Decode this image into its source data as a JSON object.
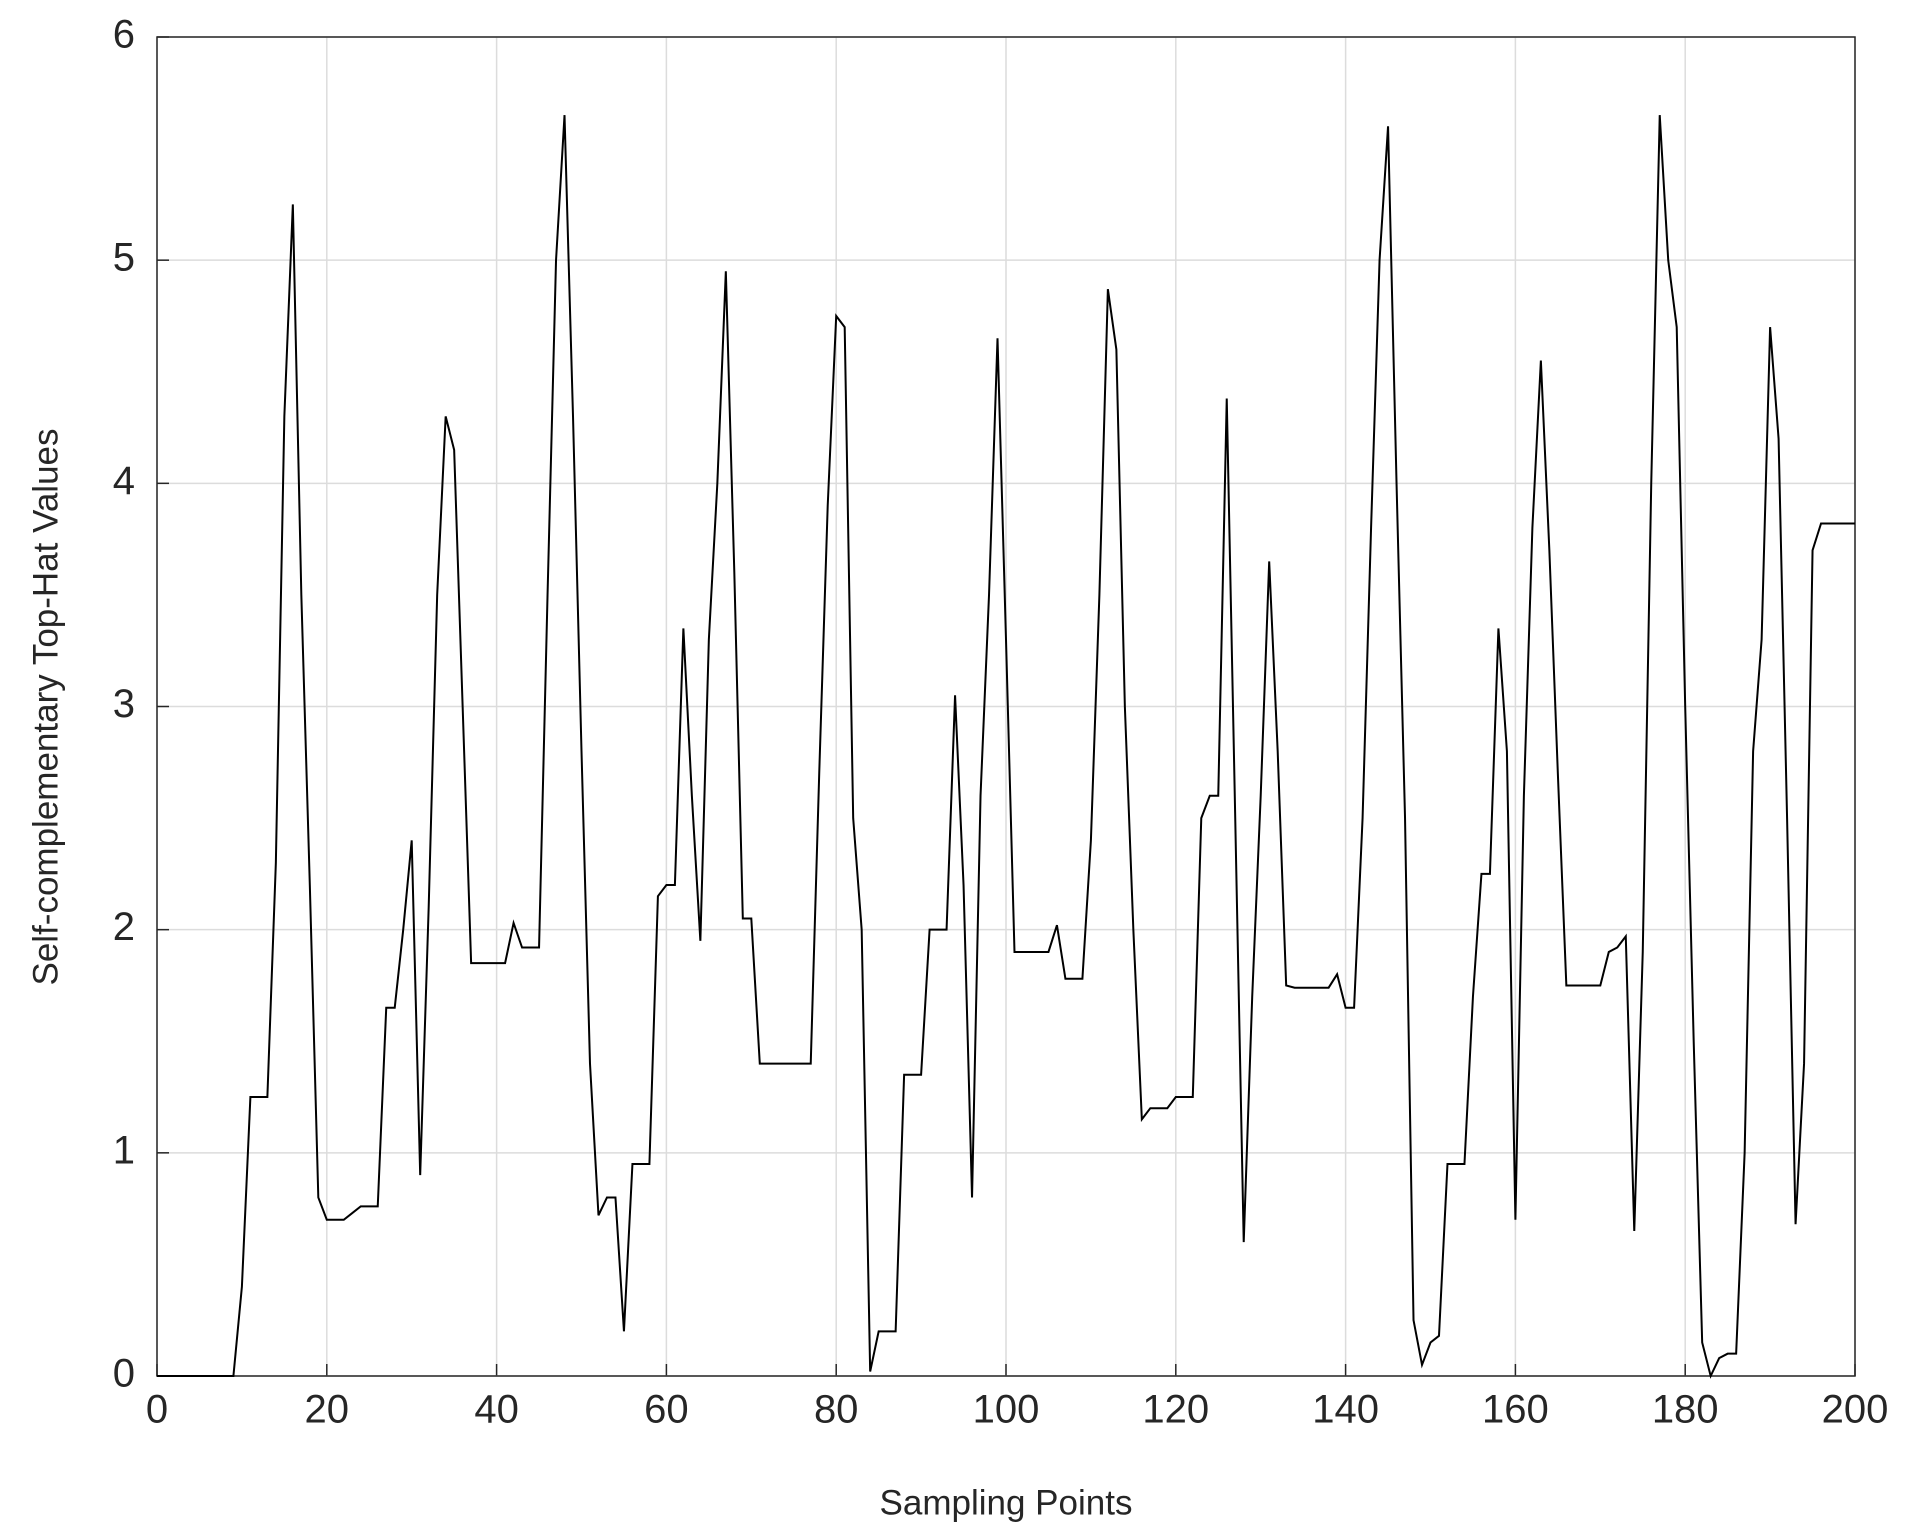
{
  "chart_data": {
    "type": "line",
    "xlabel": "Sampling Points",
    "ylabel": "Self-complementary Top-Hat Values",
    "x": [
      0,
      1,
      2,
      3,
      4,
      5,
      6,
      7,
      8,
      9,
      10,
      11,
      12,
      13,
      14,
      15,
      16,
      17,
      18,
      19,
      20,
      21,
      22,
      23,
      24,
      25,
      26,
      27,
      28,
      29,
      30,
      31,
      32,
      33,
      34,
      35,
      36,
      37,
      38,
      39,
      40,
      41,
      42,
      43,
      44,
      45,
      46,
      47,
      48,
      49,
      50,
      51,
      52,
      53,
      54,
      55,
      56,
      57,
      58,
      59,
      60,
      61,
      62,
      63,
      64,
      65,
      66,
      67,
      68,
      69,
      70,
      71,
      72,
      73,
      74,
      75,
      76,
      77,
      78,
      79,
      80,
      81,
      82,
      83,
      84,
      85,
      86,
      87,
      88,
      89,
      90,
      91,
      92,
      93,
      94,
      95,
      96,
      97,
      98,
      99,
      100,
      101,
      102,
      103,
      104,
      105,
      106,
      107,
      108,
      109,
      110,
      111,
      112,
      113,
      114,
      115,
      116,
      117,
      118,
      119,
      120,
      121,
      122,
      123,
      124,
      125,
      126,
      127,
      128,
      129,
      130,
      131,
      132,
      133,
      134,
      135,
      136,
      137,
      138,
      139,
      140,
      141,
      142,
      143,
      144,
      145,
      146,
      147,
      148,
      149,
      150,
      151,
      152,
      153,
      154,
      155,
      156,
      157,
      158,
      159,
      160,
      161,
      162,
      163,
      164,
      165,
      166,
      167,
      168,
      169,
      170,
      171,
      172,
      173,
      174,
      175,
      176,
      177,
      178,
      179,
      180,
      181,
      182,
      183,
      184,
      185,
      186,
      187,
      188,
      189,
      190,
      191,
      192,
      193,
      194,
      195,
      196,
      197,
      198,
      199,
      200
    ],
    "series": [
      {
        "color": "#000000",
        "values": [
          0,
          0,
          0,
          0,
          0,
          0,
          0,
          0,
          0,
          0,
          0.4,
          1.25,
          1.25,
          1.25,
          2.3,
          4.3,
          5.25,
          3.5,
          2.2,
          0.8,
          0.7,
          0.7,
          0.7,
          0.73,
          0.76,
          0.76,
          0.76,
          1.65,
          1.65,
          2.0,
          2.4,
          0.9,
          2.1,
          3.5,
          4.3,
          4.15,
          3.0,
          1.85,
          1.85,
          1.85,
          1.85,
          1.85,
          2.03,
          1.92,
          1.92,
          1.92,
          3.5,
          5.0,
          5.65,
          4.3,
          2.8,
          1.4,
          0.72,
          0.8,
          0.8,
          0.2,
          0.95,
          0.95,
          0.95,
          2.15,
          2.2,
          2.2,
          3.35,
          2.6,
          1.95,
          3.3,
          4.0,
          4.95,
          3.6,
          2.05,
          2.05,
          1.4,
          1.4,
          1.4,
          1.4,
          1.4,
          1.4,
          1.4,
          2.7,
          3.9,
          4.75,
          4.7,
          2.5,
          2.0,
          0.02,
          0.2,
          0.2,
          0.2,
          1.35,
          1.35,
          1.35,
          2.0,
          2.0,
          2.0,
          3.05,
          2.2,
          0.8,
          2.6,
          3.5,
          4.65,
          3.3,
          1.9,
          1.9,
          1.9,
          1.9,
          1.9,
          2.02,
          1.78,
          1.78,
          1.78,
          2.4,
          3.5,
          4.87,
          4.6,
          3.0,
          2.0,
          1.15,
          1.2,
          1.2,
          1.2,
          1.25,
          1.25,
          1.25,
          2.5,
          2.6,
          2.6,
          4.38,
          2.5,
          0.6,
          1.7,
          2.6,
          3.65,
          2.8,
          1.75,
          1.74,
          1.74,
          1.74,
          1.74,
          1.74,
          1.8,
          1.65,
          1.65,
          2.5,
          3.8,
          5.0,
          5.6,
          4.0,
          2.5,
          0.25,
          0.05,
          0.15,
          0.18,
          0.95,
          0.95,
          0.95,
          1.7,
          2.25,
          2.25,
          3.35,
          2.8,
          0.7,
          2.6,
          3.8,
          4.55,
          3.7,
          2.7,
          1.75,
          1.75,
          1.75,
          1.75,
          1.75,
          1.9,
          1.92,
          1.97,
          0.65,
          1.9,
          4.0,
          5.65,
          5.0,
          4.7,
          3.0,
          1.5,
          0.15,
          0.0,
          0.08,
          0.1,
          0.1,
          1.0,
          2.8,
          3.3,
          4.7,
          4.2,
          2.5,
          0.68,
          1.4,
          3.7,
          3.82,
          3.82,
          3.82,
          3.82,
          3.82
        ]
      }
    ],
    "xlim": [
      0,
      200
    ],
    "xticks": [
      0,
      20,
      40,
      60,
      80,
      100,
      120,
      140,
      160,
      180,
      200
    ],
    "ylim": [
      0,
      6
    ],
    "yticks": [
      0,
      1,
      2,
      3,
      4,
      5,
      6
    ],
    "grid": true
  }
}
